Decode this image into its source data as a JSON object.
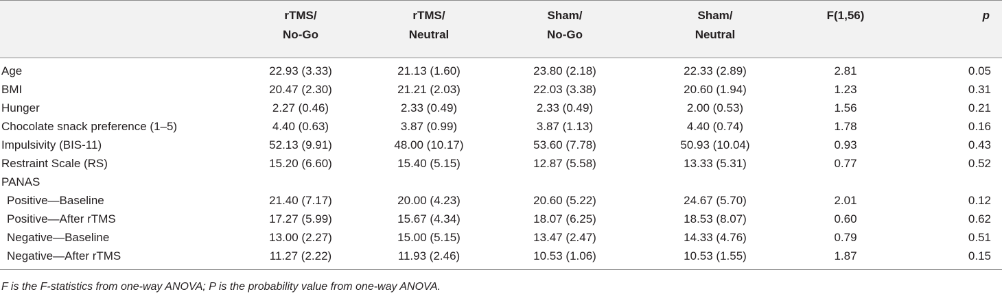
{
  "table": {
    "headers": [
      {
        "line1": "",
        "line2": ""
      },
      {
        "line1": "rTMS/",
        "line2": "No-Go"
      },
      {
        "line1": "rTMS/",
        "line2": "Neutral"
      },
      {
        "line1": "Sham/",
        "line2": "No-Go"
      },
      {
        "line1": "Sham/",
        "line2": "Neutral"
      },
      {
        "line1": "F(1,56)",
        "line2": ""
      },
      {
        "line1": "p",
        "line2": ""
      }
    ],
    "rows": [
      {
        "label": "Age",
        "cells": [
          "22.93 (3.33)",
          "21.13 (1.60)",
          "23.80 (2.18)",
          "22.33 (2.89)",
          "2.81",
          "0.05"
        ]
      },
      {
        "label": "BMI",
        "cells": [
          "20.47 (2.30)",
          "21.21 (2.03)",
          "22.03 (3.38)",
          "20.60 (1.94)",
          "1.23",
          "0.31"
        ]
      },
      {
        "label": "Hunger",
        "cells": [
          "2.27 (0.46)",
          "2.33 (0.49)",
          "2.33 (0.49)",
          "2.00 (0.53)",
          "1.56",
          "0.21"
        ]
      },
      {
        "label": "Chocolate snack preference (1–5)",
        "cells": [
          "4.40 (0.63)",
          "3.87 (0.99)",
          "3.87 (1.13)",
          "4.40 (0.74)",
          "1.78",
          "0.16"
        ]
      },
      {
        "label": "Impulsivity (BIS-11)",
        "cells": [
          "52.13 (9.91)",
          "48.00 (10.17)",
          "53.60 (7.78)",
          "50.93 (10.04)",
          "0.93",
          "0.43"
        ]
      },
      {
        "label": "Restraint Scale (RS)",
        "cells": [
          "15.20 (6.60)",
          "15.40 (5.15)",
          "12.87 (5.58)",
          "13.33 (5.31)",
          "0.77",
          "0.52"
        ]
      },
      {
        "label": "PANAS",
        "cells": [
          "",
          "",
          "",
          "",
          "",
          ""
        ]
      },
      {
        "label": "Positive—Baseline",
        "cells": [
          "21.40 (7.17)",
          "20.00 (4.23)",
          "20.60 (5.22)",
          "24.67 (5.70)",
          "2.01",
          "0.12"
        ]
      },
      {
        "label": "Positive—After rTMS",
        "cells": [
          "17.27 (5.99)",
          "15.67 (4.34)",
          "18.07 (6.25)",
          "18.53 (8.07)",
          "0.60",
          "0.62"
        ]
      },
      {
        "label": "Negative—Baseline",
        "cells": [
          "13.00 (2.27)",
          "15.00 (5.15)",
          "13.47 (2.47)",
          "14.33 (4.76)",
          "0.79",
          "0.51"
        ]
      },
      {
        "label": "Negative—After rTMS",
        "cells": [
          "11.27 (2.22)",
          "11.93 (2.46)",
          "10.53 (1.06)",
          "10.53 (1.55)",
          "1.87",
          "0.15"
        ]
      }
    ]
  },
  "footnote": "F is the F-statistics from one-way ANOVA; P is the probability value from one-way ANOVA."
}
